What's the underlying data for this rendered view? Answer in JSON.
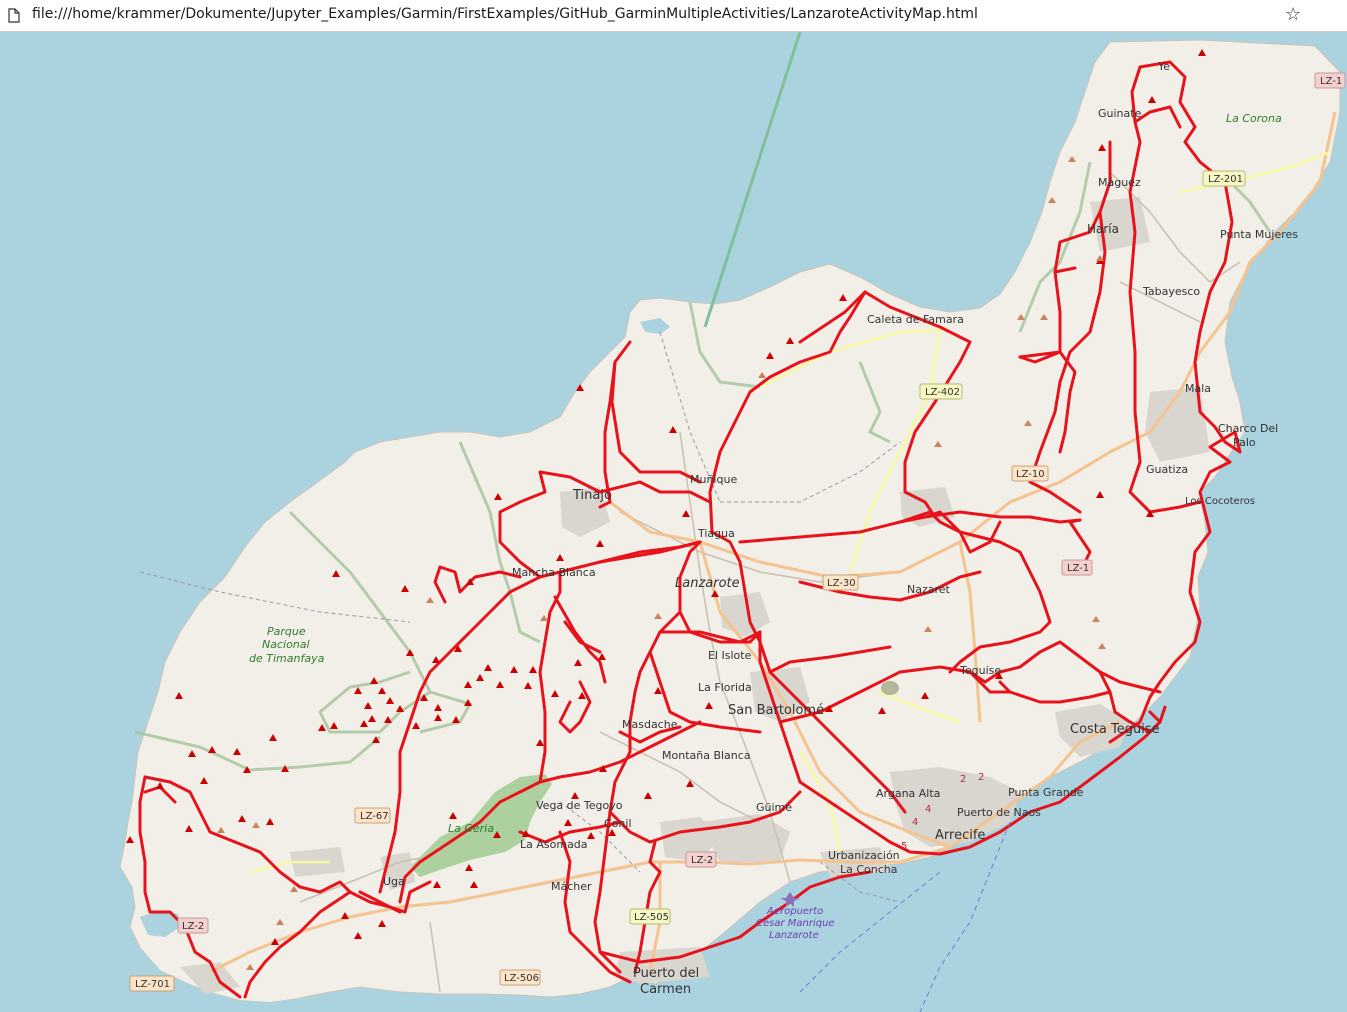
{
  "browser": {
    "url": "file:///home/krammer/Dokumente/Jupyter_Examples/Garmin/FirstExamples/GitHub_GarminMultipleActivities/LanzaroteActivityMap.html",
    "page_icon": "page-icon",
    "bookmark_icon": "star-icon"
  },
  "colors": {
    "sea": "#aad3df",
    "land": "#f2efe9",
    "track": "#e8121a",
    "park": "#add19e",
    "boundary": "#a3c49a",
    "marker": "#cc0000"
  },
  "labels": {
    "places": [
      {
        "id": "ye",
        "text": "Ye"
      },
      {
        "id": "guinate",
        "text": "Guinate"
      },
      {
        "id": "la-corona",
        "text": "La Corona"
      },
      {
        "id": "maguez",
        "text": "Máguez"
      },
      {
        "id": "haria",
        "text": "Haría"
      },
      {
        "id": "punta-mujeres",
        "text": "Punta Mujeres"
      },
      {
        "id": "tabayesco",
        "text": "Tabayesco"
      },
      {
        "id": "caleta",
        "text": "Caleta de Famara"
      },
      {
        "id": "mala",
        "text": "Mala"
      },
      {
        "id": "charco",
        "text": "Charco Del"
      },
      {
        "id": "charco2",
        "text": "Palo"
      },
      {
        "id": "guatiza",
        "text": "Guatiza"
      },
      {
        "id": "cocoteros",
        "text": "Los Cocoteros"
      },
      {
        "id": "tinajo",
        "text": "Tinajo"
      },
      {
        "id": "munique",
        "text": "Muñique"
      },
      {
        "id": "tiagua",
        "text": "Tiagua"
      },
      {
        "id": "mancha",
        "text": "Mancha Blanca"
      },
      {
        "id": "lanzarote",
        "text": "Lanzarote"
      },
      {
        "id": "nazaret",
        "text": "Nazaret"
      },
      {
        "id": "parque1",
        "text": "Parque"
      },
      {
        "id": "parque2",
        "text": "Nacional"
      },
      {
        "id": "parque3",
        "text": "de Timanfaya"
      },
      {
        "id": "islote",
        "text": "El Islote"
      },
      {
        "id": "florida",
        "text": "La Florida"
      },
      {
        "id": "teguise",
        "text": "Teguise"
      },
      {
        "id": "sanbartolome",
        "text": "San Bartolomé"
      },
      {
        "id": "costa",
        "text": "Costa Teguise"
      },
      {
        "id": "masdache",
        "text": "Masdache"
      },
      {
        "id": "montana",
        "text": "Montaña Blanca"
      },
      {
        "id": "vega",
        "text": "Vega de Tegoyo"
      },
      {
        "id": "geria",
        "text": "La Geria"
      },
      {
        "id": "conil",
        "text": "Conil"
      },
      {
        "id": "asomada",
        "text": "La Asomada"
      },
      {
        "id": "guime",
        "text": "Güime"
      },
      {
        "id": "argana",
        "text": "Argana Alta"
      },
      {
        "id": "puntagrande",
        "text": "Punta Grande"
      },
      {
        "id": "naos",
        "text": "Puerto de Naos"
      },
      {
        "id": "arrecife",
        "text": "Arrecife"
      },
      {
        "id": "urb1",
        "text": "Urbanización"
      },
      {
        "id": "urb2",
        "text": "La Concha"
      },
      {
        "id": "uga",
        "text": "Uga"
      },
      {
        "id": "macher",
        "text": "Mácher"
      },
      {
        "id": "aero1",
        "text": "Aeropuerto"
      },
      {
        "id": "aero2",
        "text": "César Manrique"
      },
      {
        "id": "aero3",
        "text": "Lanzarote"
      },
      {
        "id": "puerto1",
        "text": "Puerto del"
      },
      {
        "id": "puerto2",
        "text": "Carmen"
      }
    ],
    "roads": [
      {
        "id": "lz1-north",
        "text": "LZ-1"
      },
      {
        "id": "lz201",
        "text": "LZ-201"
      },
      {
        "id": "lz402",
        "text": "LZ-402"
      },
      {
        "id": "lz10",
        "text": "LZ-10"
      },
      {
        "id": "lz30",
        "text": "LZ-30"
      },
      {
        "id": "lz1-mid",
        "text": "LZ-1"
      },
      {
        "id": "lz67",
        "text": "LZ-67"
      },
      {
        "id": "lz2-center",
        "text": "LZ-2"
      },
      {
        "id": "lz505",
        "text": "LZ-505"
      },
      {
        "id": "lz2-west",
        "text": "LZ-2"
      },
      {
        "id": "lz701",
        "text": "LZ-701"
      },
      {
        "id": "lz506",
        "text": "LZ-506"
      }
    ],
    "road_numbers": [
      {
        "id": "n2a",
        "text": "2"
      },
      {
        "id": "n2b",
        "text": "2"
      },
      {
        "id": "n4a",
        "text": "4"
      },
      {
        "id": "n4b",
        "text": "4"
      },
      {
        "id": "n5",
        "text": "5"
      }
    ]
  }
}
